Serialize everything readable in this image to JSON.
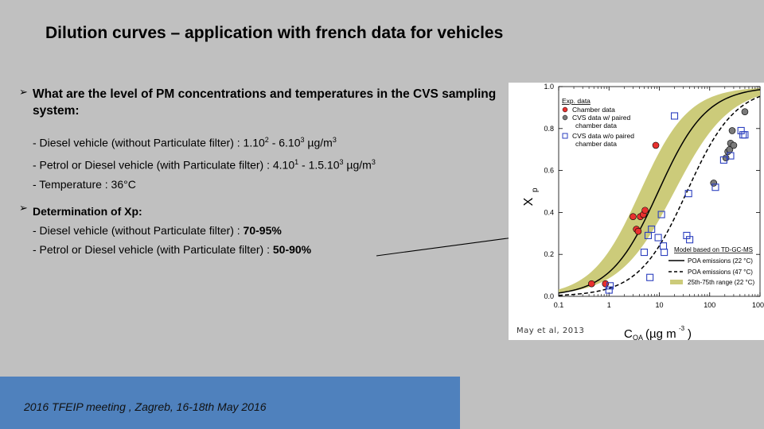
{
  "slide": {
    "title": "Dilution curves – application with french data for vehicles"
  },
  "question": {
    "arrow_icon": "arrow-bullet-icon",
    "text": "What are the level of PM concentrations and temperatures in the CVS sampling system:",
    "lines": [
      {
        "prefix": "- Diesel vehicle (without Particulate filter) : 1.10",
        "s1": "2",
        "mid": " - 6.10",
        "s2": "3",
        "suffix": " µg/m",
        "s3": "3"
      },
      {
        "prefix": "- Petrol or Diesel vehicle (with Particulate filter) : 4.10",
        "s1": "1",
        "mid": " - 1.5.10",
        "s2": "3",
        "suffix": " µg/m",
        "s3": "3"
      },
      {
        "text": "- Temperature : 36°C"
      }
    ]
  },
  "xp": {
    "heading": "Determination of Xp:",
    "lines": [
      {
        "label": "- Diesel vehicle (without Particulate filter) : ",
        "value": "70-95%"
      },
      {
        "label": "- Petrol or Diesel vehicle (with Particulate filter)  : ",
        "value": "50-90%"
      }
    ]
  },
  "chart_data": {
    "type": "scatter",
    "xlabel_main": "C",
    "xlabel_sub": "OA",
    "xlabel_units": " (µg m",
    "xlabel_exp": "-3",
    "ylabel_main": "X",
    "ylabel_sub": "p",
    "x_scale": "log",
    "xlim": [
      0.1,
      1000
    ],
    "ylim": [
      0.0,
      1.0
    ],
    "x_ticks": [
      "0.1",
      "1",
      "10",
      "100",
      "1000"
    ],
    "y_ticks": [
      "0.0",
      "0.2",
      "0.4",
      "0.6",
      "0.8",
      "1.0"
    ],
    "credit": "May et al, 2013",
    "legend_left": {
      "title": "Exp. data",
      "items": [
        "Chamber data",
        "CVS data w/ paired",
        "chamber data",
        "CVS data w/o paired",
        "chamber data"
      ]
    },
    "legend_right": {
      "title": "Model based on TD-GC-MS",
      "items": [
        "POA emissions (22 °C)",
        "POA emissions (47 °C)",
        "25th-75th range (22 °C)"
      ]
    },
    "colors": {
      "chamber": "#e8312f",
      "cvs_paired": "#7a7a7a",
      "cvs_unpaired": "#2b3fbf",
      "band": "#cccb7a",
      "curve": "#000000"
    },
    "series": [
      {
        "name": "Chamber data",
        "kind": "chamber",
        "points": [
          [
            0.45,
            0.06
          ],
          [
            0.85,
            0.06
          ],
          [
            3.0,
            0.38
          ],
          [
            3.5,
            0.32
          ],
          [
            3.8,
            0.31
          ],
          [
            4.2,
            0.38
          ],
          [
            4.8,
            0.39
          ],
          [
            5.2,
            0.41
          ],
          [
            8.5,
            0.72
          ]
        ]
      },
      {
        "name": "CVS data w/ paired chamber data",
        "kind": "cvs_paired",
        "points": [
          [
            120,
            0.54
          ],
          [
            210,
            0.66
          ],
          [
            230,
            0.69
          ],
          [
            250,
            0.7
          ],
          [
            260,
            0.73
          ],
          [
            280,
            0.79
          ],
          [
            300,
            0.72
          ],
          [
            500,
            0.88
          ]
        ]
      },
      {
        "name": "CVS data w/o paired chamber data",
        "kind": "cvs_unpaired",
        "points": [
          [
            1.0,
            0.03
          ],
          [
            1.05,
            0.05
          ],
          [
            5.0,
            0.21
          ],
          [
            6.5,
            0.09
          ],
          [
            6.0,
            0.29
          ],
          [
            7.0,
            0.32
          ],
          [
            9.5,
            0.28
          ],
          [
            11,
            0.39
          ],
          [
            12,
            0.24
          ],
          [
            12.5,
            0.21
          ],
          [
            20,
            0.86
          ],
          [
            35,
            0.29
          ],
          [
            38,
            0.49
          ],
          [
            40,
            0.27
          ],
          [
            130,
            0.52
          ],
          [
            190,
            0.65
          ],
          [
            260,
            0.67
          ],
          [
            420,
            0.79
          ],
          [
            460,
            0.77
          ],
          [
            500,
            0.77
          ]
        ]
      }
    ],
    "curves": {
      "poa22": {
        "log_c_half": 0.98,
        "width": 0.48
      },
      "poa47": {
        "log_c_half": 1.55,
        "width": 0.48
      },
      "band_low": {
        "log_c_half": 1.3,
        "width": 0.55
      },
      "band_high": {
        "log_c_half": 0.62,
        "width": 0.48
      }
    }
  },
  "footer": {
    "text": "2016 TFEIP meeting , Zagreb, 16-18th May 2016"
  }
}
